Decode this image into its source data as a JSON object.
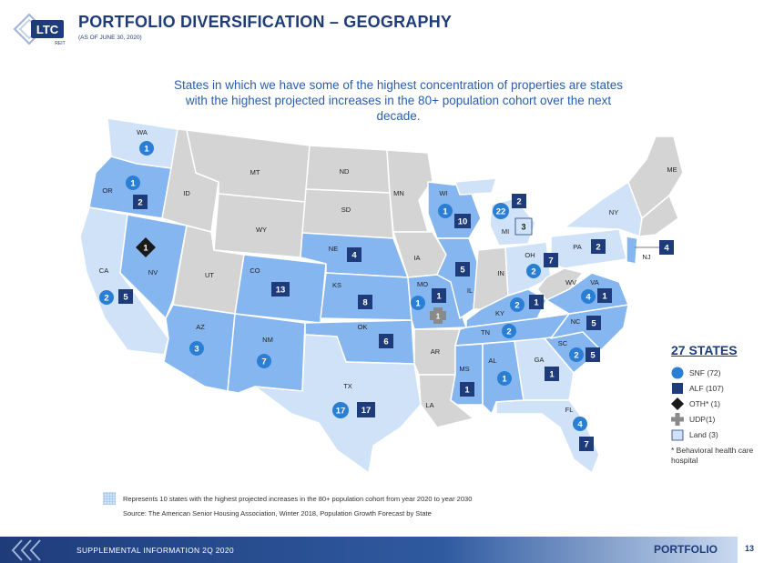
{
  "header": {
    "title": "PORTFOLIO DIVERSIFICATION – GEOGRAPHY",
    "subtitle": "(AS OF JUNE 30, 2020)",
    "logo_text": "LTC",
    "logo_subtext": "REIT"
  },
  "intro_text": "States in which we have some of the highest concentration of properties are states with the highest projected increases in the 80+ population cohort over the next decade.",
  "colors": {
    "navy": "#1f3c7a",
    "state_gray": "#d4d4d4",
    "state_light": "#cfe2f7",
    "state_mid": "#86b6ef",
    "snf_circle": "#2a7fd4",
    "alf_square": "#1f3c7a"
  },
  "states": {
    "WA": "WA",
    "OR": "OR",
    "ID": "ID",
    "MT": "MT",
    "ND": "ND",
    "SD": "SD",
    "WY": "WY",
    "CA": "CA",
    "NV": "NV",
    "UT": "UT",
    "CO": "CO",
    "NE": "NE",
    "KS": "KS",
    "MN": "MN",
    "IA": "IA",
    "MO": "MO",
    "WI": "WI",
    "IL": "IL",
    "MI": "MI",
    "IN": "IN",
    "OH": "OH",
    "AZ": "AZ",
    "NM": "NM",
    "TX": "TX",
    "OK": "OK",
    "AR": "AR",
    "LA": "LA",
    "MS": "MS",
    "AL": "AL",
    "TN": "TN",
    "KY": "KY",
    "GA": "GA",
    "FL": "FL",
    "SC": "SC",
    "NC": "NC",
    "VA": "VA",
    "WV": "WV",
    "PA": "PA",
    "NY": "NY",
    "NJ": "NJ",
    "ME": "ME"
  },
  "markers": {
    "wa_snf": "1",
    "or_snf": "1",
    "or_alf": "2",
    "nv_oth": "1",
    "ca_snf": "2",
    "ca_alf": "5",
    "co_alf": "13",
    "az_snf": "3",
    "nm_snf": "7",
    "ne_alf": "4",
    "ks_alf": "8",
    "ok_alf": "6",
    "tx_snf": "17",
    "tx_alf": "17",
    "wi_snf": "1",
    "wi_alf": "10",
    "il_alf": "5",
    "mo_snf": "1",
    "mo_alf": "1",
    "mo_udp": "1",
    "mi_snf": "22",
    "mi_alf": "2",
    "mi_land": "3",
    "oh_snf": "2",
    "oh_alf": "7",
    "pa_alf": "2",
    "nj_alf": "4",
    "va_snf": "4",
    "va_alf": "1",
    "ky_snf": "2",
    "ky_alf": "1",
    "tn_snf": "2",
    "nc_alf": "5",
    "sc_snf": "2",
    "sc_alf": "5",
    "ms_alf": "1",
    "al_snf": "1",
    "ga_alf": "1",
    "fl_snf": "4",
    "fl_alf": "7"
  },
  "legend": {
    "title": "27 STATES",
    "snf": "SNF (72)",
    "alf": "ALF (107)",
    "oth": "OTH* (1)",
    "udp": "UDP(1)",
    "land": "Land (3)",
    "note": "*  Behavioral health care hospital"
  },
  "bottom_legend": "Represents 10 states with the highest projected increases in the 80+ population cohort from year 2020 to year 2030",
  "source": "Source:  The American Senior Housing Association, Winter 2018, Population Growth Forecast by State",
  "footer": {
    "text": "SUPPLEMENTAL INFORMATION  2Q 2020",
    "section": "PORTFOLIO",
    "page": "13"
  }
}
